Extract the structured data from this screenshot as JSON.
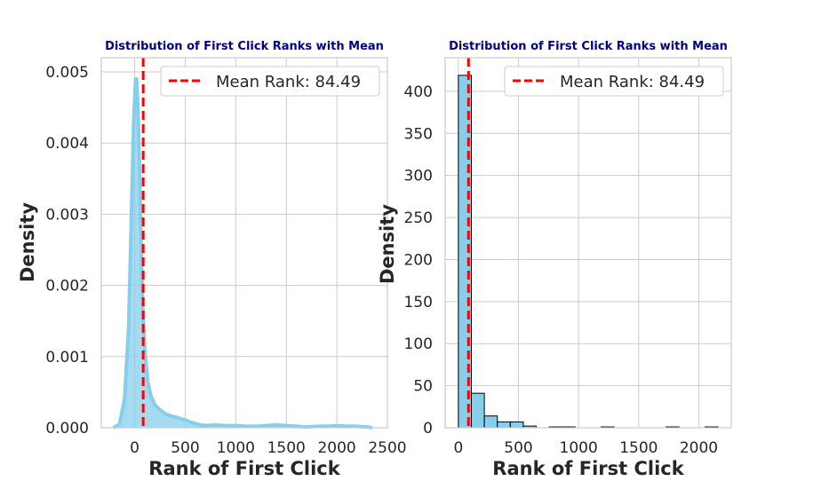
{
  "chart_data": [
    {
      "type": "area",
      "title": "Distribution of First Click Ranks with Mean",
      "xlabel": "Rank of First Click",
      "ylabel": "Density",
      "xlim": [
        -330,
        2500
      ],
      "ylim": [
        0,
        0.0052
      ],
      "xticks": [
        0,
        500,
        1000,
        1500,
        2000,
        2500
      ],
      "yticks": [
        0.0,
        0.001,
        0.002,
        0.003,
        0.004,
        0.005
      ],
      "ytick_labels": [
        "0.000",
        "0.001",
        "0.002",
        "0.003",
        "0.004",
        "0.005"
      ],
      "grid": true,
      "color": "#87ceeb",
      "series": [
        {
          "x": [
            -210,
            -150,
            -100,
            -60,
            -30,
            -10,
            10,
            20,
            35,
            50,
            65,
            80,
            100,
            130,
            160,
            200,
            250,
            300,
            350,
            400,
            450,
            500,
            550,
            600,
            650,
            700,
            800,
            900,
            1000,
            1100,
            1200,
            1300,
            1400,
            1500,
            1600,
            1700,
            1800,
            1900,
            2000,
            2100,
            2200,
            2300,
            2350
          ],
          "y": [
            0.0,
            5e-05,
            0.0004,
            0.0014,
            0.0031,
            0.0043,
            0.0049,
            0.0049,
            0.0044,
            0.0035,
            0.0025,
            0.0017,
            0.0011,
            0.00065,
            0.00045,
            0.00032,
            0.00025,
            0.0002,
            0.00017,
            0.00015,
            0.00013,
            0.00011,
            8e-05,
            6e-05,
            4e-05,
            3e-05,
            4e-05,
            3e-05,
            3e-05,
            2e-05,
            2e-05,
            3e-05,
            4e-05,
            3e-05,
            2e-05,
            1e-05,
            2e-05,
            2e-05,
            3e-05,
            2e-05,
            2e-05,
            1e-05,
            0.0
          ]
        }
      ],
      "mean_line": {
        "x": 84.49,
        "color": "#ff0000",
        "style": "dashed"
      },
      "legend": {
        "label": "Mean Rank: 84.49",
        "placement": "top-right"
      }
    },
    {
      "type": "bar",
      "title": "Distribution of First Click Ranks with Mean",
      "xlabel": "Rank of First Click",
      "ylabel": "Density",
      "xlim": [
        -110,
        2270
      ],
      "ylim": [
        0,
        440
      ],
      "xticks": [
        0,
        500,
        1000,
        1500,
        2000
      ],
      "yticks": [
        0,
        50,
        100,
        150,
        200,
        250,
        300,
        350,
        400
      ],
      "grid": true,
      "color": "#87ceeb",
      "bin_edges": [
        0,
        108,
        216,
        324,
        432,
        540,
        648,
        756,
        864,
        972,
        1080,
        1188,
        1296,
        1404,
        1512,
        1620,
        1728,
        1836,
        1944,
        2052,
        2160
      ],
      "counts": [
        419,
        41,
        14,
        7,
        7,
        2,
        0,
        1,
        1,
        0,
        0,
        1,
        0,
        0,
        0,
        0,
        1,
        0,
        0,
        1
      ],
      "mean_line": {
        "x": 84.49,
        "color": "#ff0000",
        "style": "dashed"
      },
      "legend": {
        "label": "Mean Rank: 84.49",
        "placement": "top-right"
      }
    }
  ]
}
